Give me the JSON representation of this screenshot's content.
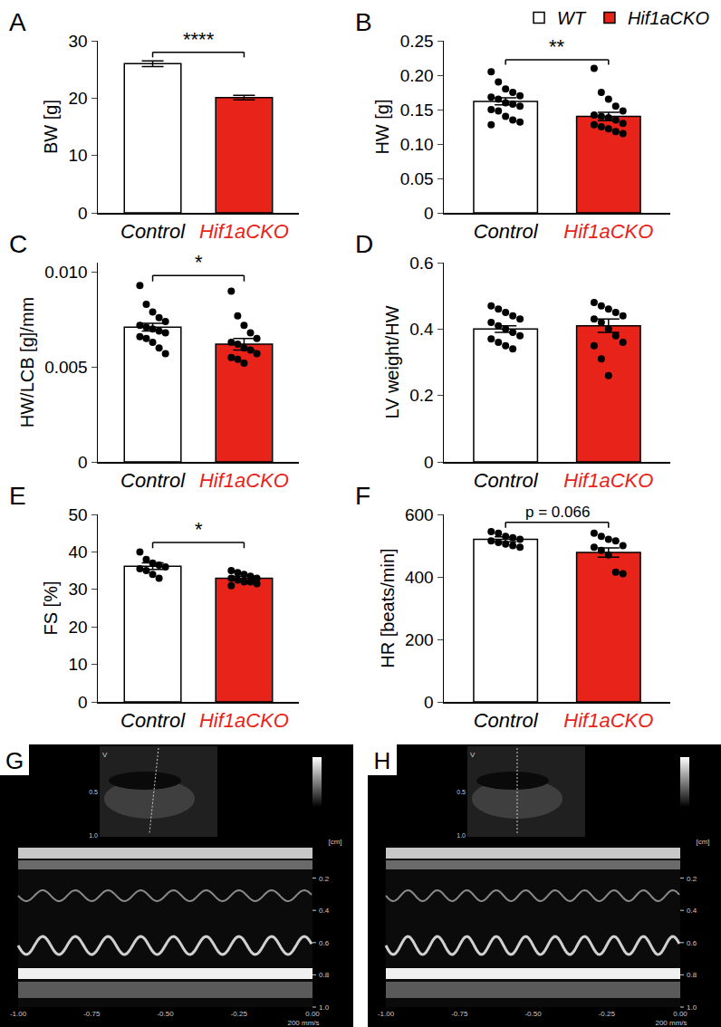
{
  "chart_data": [
    {
      "type": "bar",
      "title": "A",
      "y_label": "BW [g]",
      "categories": [
        "Control",
        "Hif1aCKO"
      ],
      "values": [
        26.0,
        20.1
      ],
      "errors": [
        0.5,
        0.4
      ],
      "colors": [
        "#ffffff",
        "#e8231a"
      ],
      "ylim": [
        0,
        30
      ],
      "yticks": [
        0,
        10,
        20,
        30
      ],
      "significance": "****",
      "grid": false
    },
    {
      "type": "bar",
      "title": "B",
      "y_label": "HW [g]",
      "categories": [
        "Control",
        "Hif1aCKO"
      ],
      "series": [
        {
          "name": "WT",
          "color": "#ffffff",
          "values": [
            0.162,
            null
          ],
          "errors": [
            0.005,
            null
          ]
        },
        {
          "name": "Hif1aCKO",
          "color": "#e8231a",
          "values": [
            null,
            0.14
          ],
          "errors": [
            null,
            0.006
          ]
        }
      ],
      "points": [
        [
          0.205,
          0.19,
          0.18,
          0.175,
          0.17,
          0.168,
          0.165,
          0.16,
          0.158,
          0.155,
          0.15,
          0.148,
          0.14,
          0.135,
          0.132,
          0.128
        ],
        [
          0.21,
          0.175,
          0.165,
          0.155,
          0.148,
          0.142,
          0.14,
          0.138,
          0.135,
          0.13,
          0.128,
          0.125,
          0.122,
          0.118,
          0.115
        ]
      ],
      "ylim": [
        0,
        0.25
      ],
      "yticks": [
        0,
        0.05,
        {
          "value": 0.1,
          "label": "0.10"
        },
        0.15,
        {
          "value": 0.2,
          "label": "0.20"
        },
        0.25
      ],
      "significance": "**",
      "legend": "top right",
      "grid": false
    },
    {
      "type": "bar",
      "title": "C",
      "y_label": "HW/LCB [g]/mm",
      "categories": [
        "Control",
        "Hif1aCKO"
      ],
      "values": [
        0.0071,
        0.0062
      ],
      "errors": [
        0.0002,
        0.0003
      ],
      "colors": [
        "#ffffff",
        "#e8231a"
      ],
      "points": [
        [
          0.0093,
          0.0083,
          0.0079,
          0.0076,
          0.0074,
          0.0072,
          0.0071,
          0.007,
          0.0069,
          0.0068,
          0.0066,
          0.0065,
          0.0063,
          0.006,
          0.0057
        ],
        [
          0.009,
          0.0077,
          0.0072,
          0.0068,
          0.0065,
          0.0063,
          0.0062,
          0.006,
          0.0059,
          0.0057,
          0.0055,
          0.0054,
          0.0052
        ]
      ],
      "ylim": [
        0,
        0.0105
      ],
      "yticks": [
        0,
        0.005,
        {
          "value": 0.01,
          "label": "0.010"
        }
      ],
      "significance": "*",
      "grid": false
    },
    {
      "type": "bar",
      "title": "D",
      "y_label": "LV weight/HW",
      "categories": [
        "Control",
        "Hif1aCKO"
      ],
      "values": [
        0.4,
        0.41
      ],
      "errors": [
        0.01,
        0.02
      ],
      "colors": [
        "#ffffff",
        "#e8231a"
      ],
      "points": [
        [
          0.47,
          0.46,
          0.45,
          0.44,
          0.43,
          0.42,
          0.41,
          0.4,
          0.39,
          0.38,
          0.37,
          0.36,
          0.35,
          0.34
        ],
        [
          0.48,
          0.47,
          0.46,
          0.45,
          0.44,
          0.43,
          0.42,
          0.4,
          0.38,
          0.36,
          0.35,
          0.31,
          0.26
        ]
      ],
      "ylim": [
        0,
        0.6
      ],
      "yticks": [
        0,
        0.2,
        0.4,
        0.6
      ],
      "grid": false
    },
    {
      "type": "bar",
      "title": "E",
      "y_label": "FS [%]",
      "categories": [
        "Control",
        "Hif1aCKO"
      ],
      "values": [
        36.2,
        33.0
      ],
      "errors": [
        0.9,
        0.5
      ],
      "colors": [
        "#ffffff",
        "#e8231a"
      ],
      "points": [
        [
          40,
          38,
          37,
          36.5,
          36,
          35.5,
          35,
          34,
          33
        ],
        [
          35,
          34.5,
          34,
          33.5,
          33,
          33,
          32.5,
          32,
          32,
          31.5,
          31
        ]
      ],
      "ylim": [
        0,
        50
      ],
      "yticks": [
        0,
        10,
        20,
        30,
        40,
        50
      ],
      "significance": "*",
      "grid": false
    },
    {
      "type": "bar",
      "title": "F",
      "y_label": "HR [beats/min]",
      "categories": [
        "Control",
        "Hif1aCKO"
      ],
      "values": [
        520,
        478
      ],
      "errors": [
        8,
        15
      ],
      "colors": [
        "#ffffff",
        "#e8231a"
      ],
      "points": [
        [
          545,
          540,
          530,
          525,
          520,
          515,
          510,
          505,
          500,
          495
        ],
        [
          540,
          530,
          520,
          515,
          500,
          495,
          485,
          470,
          415,
          410
        ]
      ],
      "ylim": [
        0,
        600
      ],
      "yticks": [
        0,
        200,
        400,
        600
      ],
      "significance": "p = 0.066",
      "grid": false
    }
  ],
  "images": [
    {
      "label": "G",
      "mark": "V",
      "inset_ticks": [
        0.5,
        {
          "value": 1,
          "label": "1.0"
        }
      ],
      "depth_unit": "[cm]",
      "depth_ticks": [
        0.2,
        0.4,
        0.6,
        0.8,
        {
          "value": 1,
          "label": "1.0"
        }
      ],
      "time_ticks": [
        {
          "value": -1,
          "label": "-1.00"
        },
        {
          "value": -0.75,
          "label": "-0.75"
        },
        {
          "value": -0.5,
          "label": "-0.50"
        },
        {
          "value": -0.25,
          "label": "-0.25"
        },
        {
          "value": 0,
          "label": "0.00"
        }
      ],
      "speed": "200 mm/s"
    },
    {
      "label": "H",
      "mark": "V",
      "inset_ticks": [
        0.5,
        {
          "value": 1,
          "label": "1.0"
        }
      ],
      "depth_unit": "[cm]",
      "depth_ticks": [
        0.2,
        0.4,
        0.6,
        0.8,
        {
          "value": 1,
          "label": "1.0"
        }
      ],
      "time_ticks": [
        {
          "value": -1,
          "label": "-1.00"
        },
        {
          "value": -0.75,
          "label": "-0.75"
        },
        {
          "value": -0.5,
          "label": "-0.50"
        },
        {
          "value": -0.25,
          "label": "-0.25"
        },
        {
          "value": 0,
          "label": "0.00"
        }
      ],
      "speed": "200 mm/s"
    }
  ]
}
